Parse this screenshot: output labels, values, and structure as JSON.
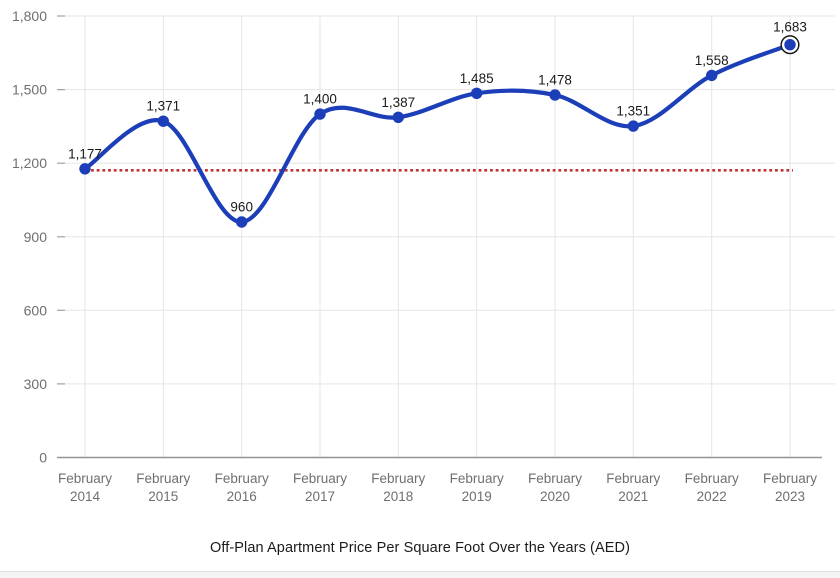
{
  "chart_data": {
    "type": "line",
    "title": "Off-Plan Apartment Price Per Square Foot Over the Years (AED)",
    "xlabel": "",
    "ylabel": "",
    "categories": [
      "February 2014",
      "February 2015",
      "February 2016",
      "February 2017",
      "February 2018",
      "February 2019",
      "February 2020",
      "February 2021",
      "February 2022",
      "February 2023"
    ],
    "values": [
      1177,
      1371,
      960,
      1400,
      1387,
      1485,
      1478,
      1351,
      1558,
      1683
    ],
    "point_labels": [
      "1,177",
      "1,371",
      "960",
      "1,400",
      "1,387",
      "1,485",
      "1,478",
      "1,351",
      "1,558",
      "1,683"
    ],
    "ylim": [
      0,
      1800
    ],
    "yticks": [
      0,
      300,
      600,
      900,
      1200,
      1500,
      1800
    ],
    "ytick_labels": [
      "0",
      "300",
      "600",
      "900",
      "1,200",
      "1,500",
      "1,800"
    ],
    "grid": true,
    "legend": "none",
    "curve": "smooth",
    "reference_line": {
      "value": 1177,
      "style": "dotted"
    },
    "highlight_last_point": true,
    "colors": {
      "line": "#1c3eb8",
      "point": "#1c3eb8",
      "reference": "#c23333",
      "grid": "#e5e5e5",
      "axis": "#949494",
      "tick_mark": "#a3a3a3",
      "tick_label": "#6f6f6f",
      "data_label": "#1a1a1a",
      "highlight_ring": "#1a1a1a",
      "highlight_ring_fill": "#ffffff"
    }
  }
}
